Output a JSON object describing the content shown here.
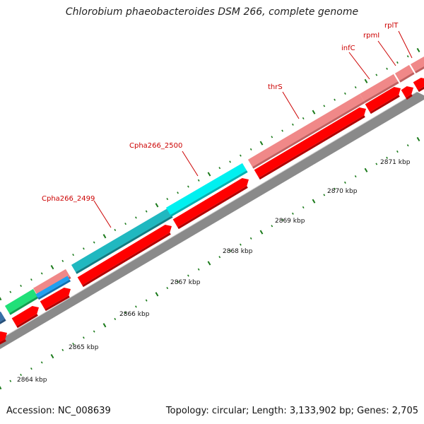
{
  "title": "Chlorobium phaeobacteroides DSM 266, complete genome",
  "footer": {
    "accession": "Accession: NC_008639",
    "stats": "Topology: circular; Length: 3,133,902 bp; Genes: 2,705"
  },
  "colors": {
    "cds": "#ff0000",
    "gene_pink": "#f08888",
    "gene_teal": "#20b8c0",
    "gene_cyan": "#00f0f0",
    "gene_green": "#20e078",
    "gene_blue": "#20a0f0",
    "gene_steel": "#3870a8",
    "backbone": "#888888",
    "ticks": "#1a7a1a",
    "label": "#cc0000"
  },
  "scale_labels": [
    "2864 kbp",
    "2865 kbp",
    "2866 kbp",
    "2867 kbp",
    "2868 kbp",
    "2869 kbp",
    "2870 kbp",
    "2871 kbp"
  ],
  "gene_labels": [
    "Cpha266_2499",
    "Cpha266_2500",
    "thrS",
    "infC",
    "rpmI",
    "rplT"
  ]
}
